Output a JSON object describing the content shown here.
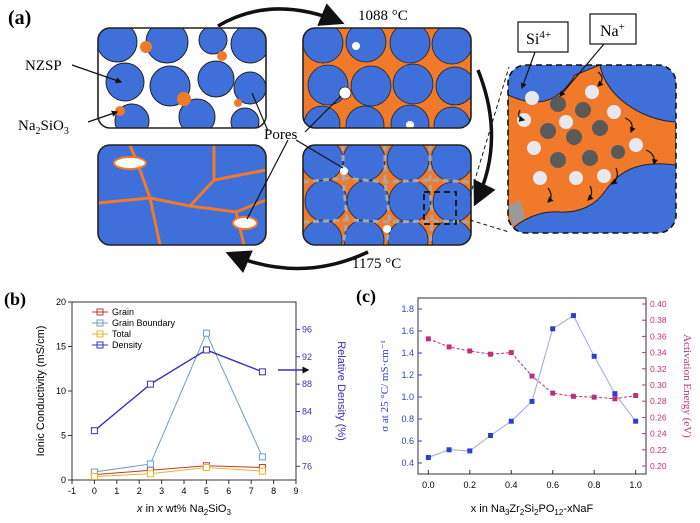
{
  "panels": {
    "a": {
      "label": "(a)",
      "temp_low": "1088 °C",
      "temp_high": "1175 °C",
      "nzsp_label": "NZSP",
      "na2sio3_label": "Na",
      "na2sio3_sub1": "2",
      "na2sio3_mid": "SiO",
      "na2sio3_sub2": "3",
      "pores_label": "Pores",
      "si_label": "Si",
      "si_sup": "4+",
      "na_label": "Na",
      "na_sup": "+",
      "colors": {
        "grain": "#3f6fd8",
        "binder": "#f07a2a",
        "outline": "#222222"
      }
    },
    "b": {
      "label": "(b)",
      "colors": {
        "grain": "#c0392b",
        "boundary": "#6a9ec4",
        "total": "#e8b623",
        "density": "#3b2fb8"
      }
    },
    "c": {
      "label": "(c)",
      "colors": {
        "sigma": "#2b3fd0",
        "ea": "#c0307a",
        "line": "#9aa8e8"
      }
    }
  },
  "chart_data": [
    {
      "type": "line",
      "panel": "b",
      "title": "",
      "xlabel": "x in x wt% Na2SiO3",
      "xlabel_parts": {
        "a": "x",
        "b": " in ",
        "c": "x",
        "d": " wt% Na",
        "e": "2",
        "f": "SiO",
        "g": "3"
      },
      "ylabel": "Ionic Conductivity (mS/cm)",
      "y2label": "Relative Density (%)",
      "xlim": [
        -1,
        9
      ],
      "ylim": [
        0,
        20
      ],
      "y2lim": [
        74,
        100
      ],
      "xticks": [
        "-1",
        "0",
        "1",
        "2",
        "3",
        "4",
        "5",
        "6",
        "7",
        "8",
        "9"
      ],
      "yticks": [
        "0",
        "5",
        "10",
        "15",
        "20"
      ],
      "y2ticks": [
        "76",
        "80",
        "84",
        "88",
        "92",
        "96"
      ],
      "x": [
        0,
        2.5,
        5,
        7.5
      ],
      "series": [
        {
          "name": "Grain",
          "axis": "left",
          "values": [
            0.6,
            1.1,
            1.6,
            1.4
          ]
        },
        {
          "name": "Grain Boundary",
          "axis": "left",
          "values": [
            0.9,
            1.8,
            16.5,
            2.6
          ]
        },
        {
          "name": "Total",
          "axis": "left",
          "values": [
            0.4,
            0.7,
            1.4,
            1.0
          ]
        },
        {
          "name": "Density",
          "axis": "right",
          "values": [
            81.2,
            88.0,
            93.0,
            89.8
          ]
        }
      ]
    },
    {
      "type": "scatter",
      "panel": "c",
      "title": "",
      "xlabel": "x in Na3Zr2Si2PO12-xNaF",
      "xlabel_parts": {
        "a": "x in Na",
        "b": "3",
        "c": "Zr",
        "d": "2",
        "e": "Si",
        "f": "2",
        "g": "PO",
        "h": "12",
        "i": "-xNaF"
      },
      "ylabel": "σ at 25 °C/ mS·cm⁻¹",
      "y2label": "Activation Energy (eV)",
      "xlim": [
        -0.05,
        1.05
      ],
      "ylim": [
        0.3,
        1.9
      ],
      "y2lim": [
        0.2,
        0.4
      ],
      "xticks": [
        "0.0",
        "0.2",
        "0.4",
        "0.6",
        "0.8",
        "1.0"
      ],
      "yticks": [
        "0.4",
        "0.6",
        "0.8",
        "1.0",
        "1.2",
        "1.4",
        "1.6",
        "1.8"
      ],
      "y2ticks": [
        "0.20",
        "0.22",
        "0.24",
        "0.26",
        "0.28",
        "0.30",
        "0.32",
        "0.34",
        "0.36",
        "0.38",
        "0.40"
      ],
      "x": [
        0.0,
        0.1,
        0.2,
        0.3,
        0.4,
        0.5,
        0.6,
        0.7,
        0.8,
        0.9,
        1.0
      ],
      "series": [
        {
          "name": "Conductivity",
          "axis": "left",
          "values": [
            0.45,
            0.52,
            0.51,
            0.65,
            0.78,
            0.96,
            1.62,
            1.74,
            1.37,
            1.03,
            0.78
          ]
        },
        {
          "name": "Activation Energy",
          "axis": "right",
          "values": [
            0.357,
            0.347,
            0.342,
            0.338,
            0.34,
            0.311,
            0.29,
            0.286,
            0.285,
            0.283,
            0.287
          ]
        }
      ]
    }
  ]
}
